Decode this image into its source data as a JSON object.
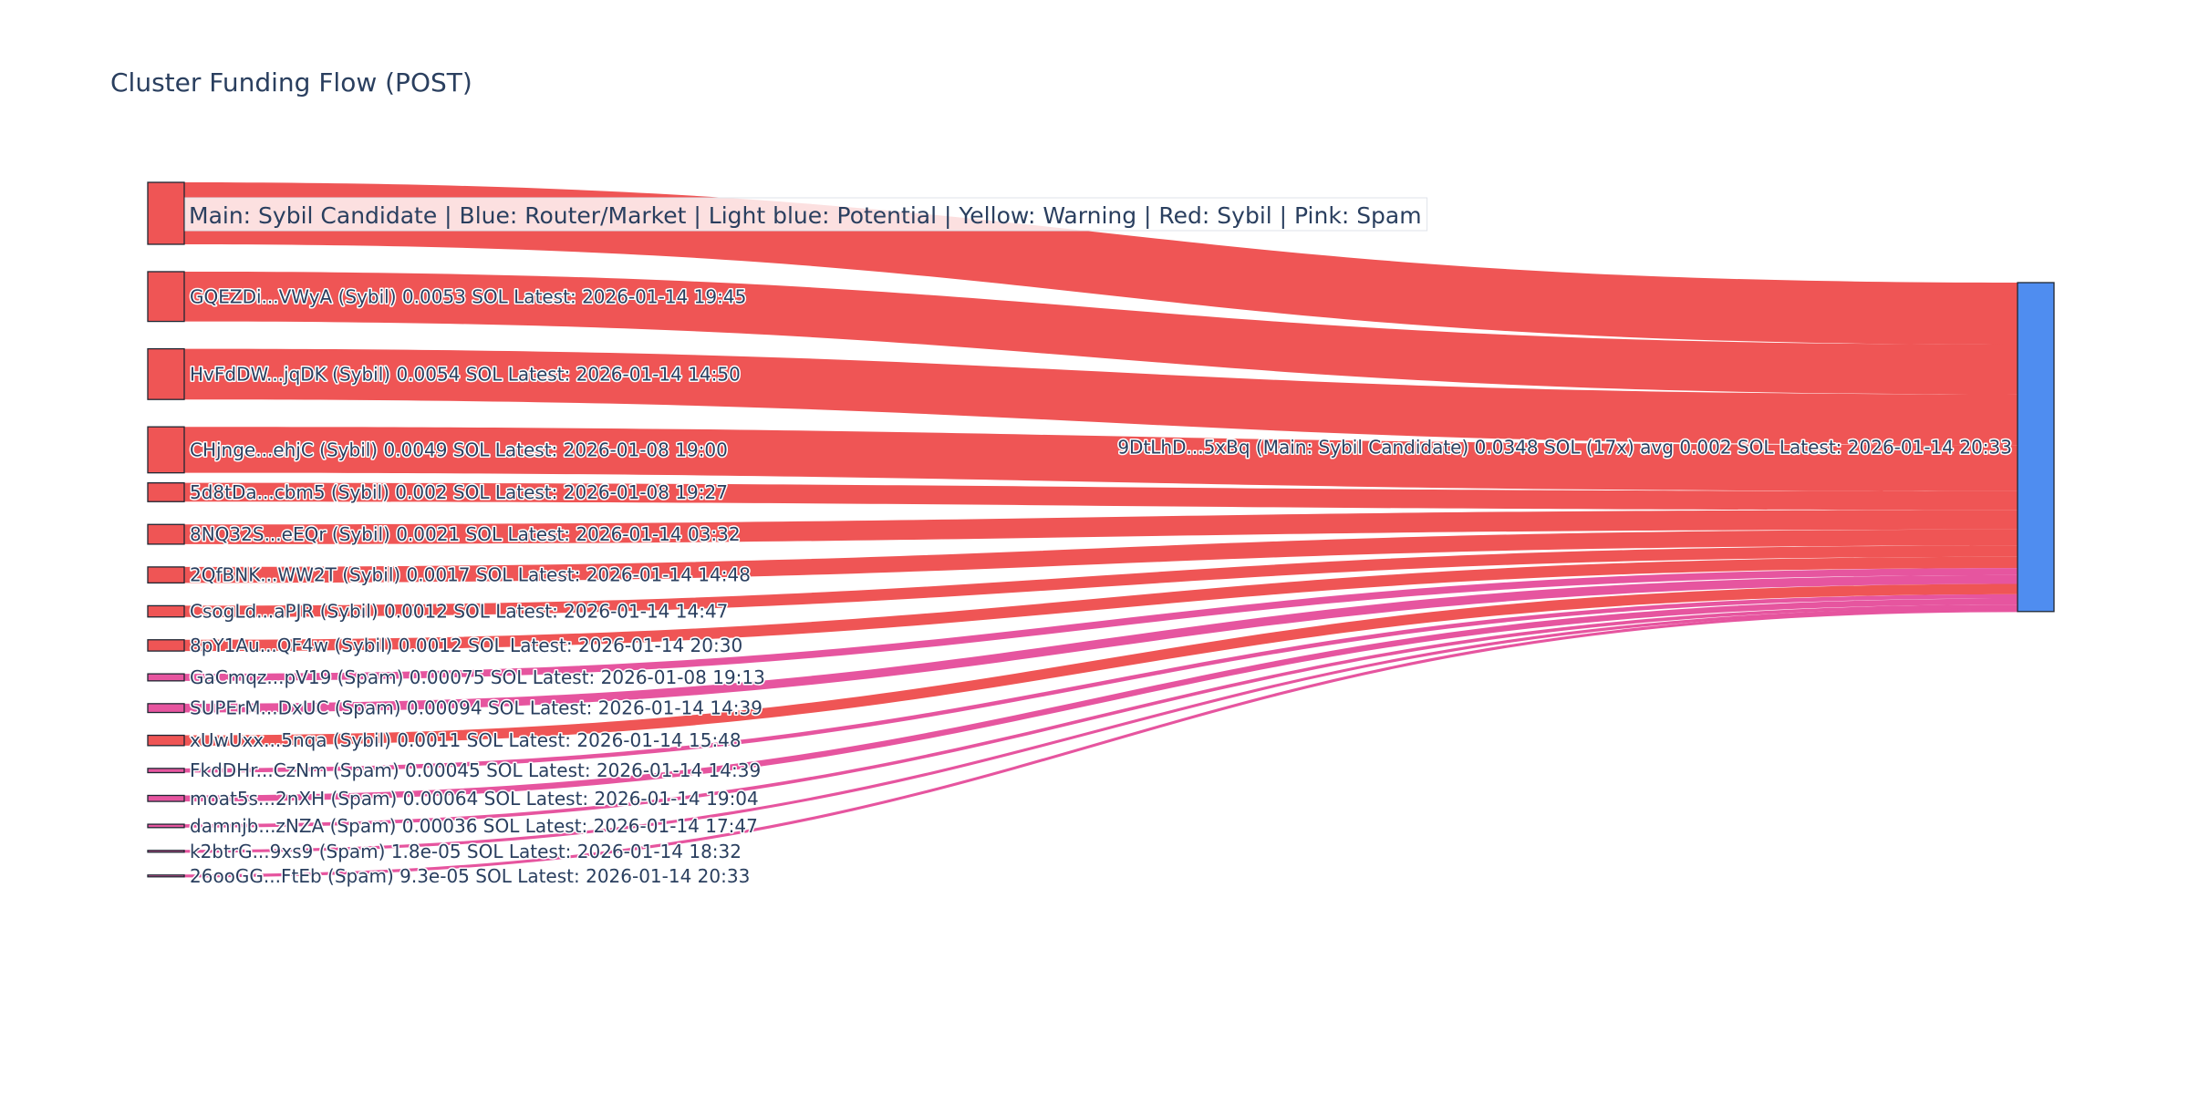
{
  "chart_data": {
    "type": "sankey",
    "title": "Cluster Funding Flow (POST)",
    "legend_text": "Main: Sybil Candidate  |  Blue: Router/Market | Light blue: Potential | Yellow: Warning | Red: Sybil | Pink: Spam",
    "legend_placement": "top-left",
    "colors": {
      "sybil": "#ef5555",
      "spam": "#e6559f",
      "target": "#4f8df0"
    },
    "target": {
      "label": "9DtLhD...5xBq (Main: Sybil Candidate) 0.0348 SOL (17x) avg 0.002 SOL Latest: 2026-01-14 20:33",
      "value": 0.0348
    },
    "sources": [
      {
        "label": "",
        "category": "sybil",
        "value": 0.0066
      },
      {
        "label": "GQEZDi...VWyA (Sybil) 0.0053 SOL Latest: 2026-01-14 19:45",
        "category": "sybil",
        "value": 0.0053
      },
      {
        "label": "HvFdDW...jqDK (Sybil) 0.0054 SOL Latest: 2026-01-14 14:50",
        "category": "sybil",
        "value": 0.0054
      },
      {
        "label": "CHjnge...ehjC (Sybil) 0.0049 SOL Latest: 2026-01-08 19:00",
        "category": "sybil",
        "value": 0.0049
      },
      {
        "label": "5d8tDa...cbm5 (Sybil) 0.002 SOL Latest: 2026-01-08 19:27",
        "category": "sybil",
        "value": 0.002
      },
      {
        "label": "8NQ32S...eEQr (Sybil) 0.0021 SOL Latest: 2026-01-14 03:32",
        "category": "sybil",
        "value": 0.0021
      },
      {
        "label": "2QfBNK...WW2T (Sybil) 0.0017 SOL Latest: 2026-01-14 14:48",
        "category": "sybil",
        "value": 0.0017
      },
      {
        "label": "CsogLd...aPJR (Sybil) 0.0012 SOL Latest: 2026-01-14 14:47",
        "category": "sybil",
        "value": 0.0012
      },
      {
        "label": "8pY1Au...QF4w (Sybil) 0.0012 SOL Latest: 2026-01-14 20:30",
        "category": "sybil",
        "value": 0.0012
      },
      {
        "label": "GaCmqz...pV19 (Spam) 0.00075 SOL Latest: 2026-01-08 19:13",
        "category": "spam",
        "value": 0.00075
      },
      {
        "label": "SUPErM...DxUC (Spam) 0.00094 SOL Latest: 2026-01-14 14:39",
        "category": "spam",
        "value": 0.00094
      },
      {
        "label": "xUwUxx...5nqa (Sybil) 0.0011 SOL Latest: 2026-01-14 15:48",
        "category": "sybil",
        "value": 0.0011
      },
      {
        "label": "FkdDHr...CzNm (Spam) 0.00045 SOL Latest: 2026-01-14 14:39",
        "category": "spam",
        "value": 0.00045
      },
      {
        "label": "moat5s...2nXH (Spam) 0.00064 SOL Latest: 2026-01-14 19:04",
        "category": "spam",
        "value": 0.00064
      },
      {
        "label": "damnjb...zNZA (Spam) 0.00036 SOL Latest: 2026-01-14 17:47",
        "category": "spam",
        "value": 0.00036
      },
      {
        "label": "k2btrG...9xs9 (Spam) 1.8e-05 SOL Latest: 2026-01-14 18:32",
        "category": "spam",
        "value": 1.8e-05
      },
      {
        "label": "26ooGG...FtEb (Spam) 9.3e-05 SOL Latest: 2026-01-14 20:33",
        "category": "spam",
        "value": 9.3e-05
      }
    ]
  }
}
